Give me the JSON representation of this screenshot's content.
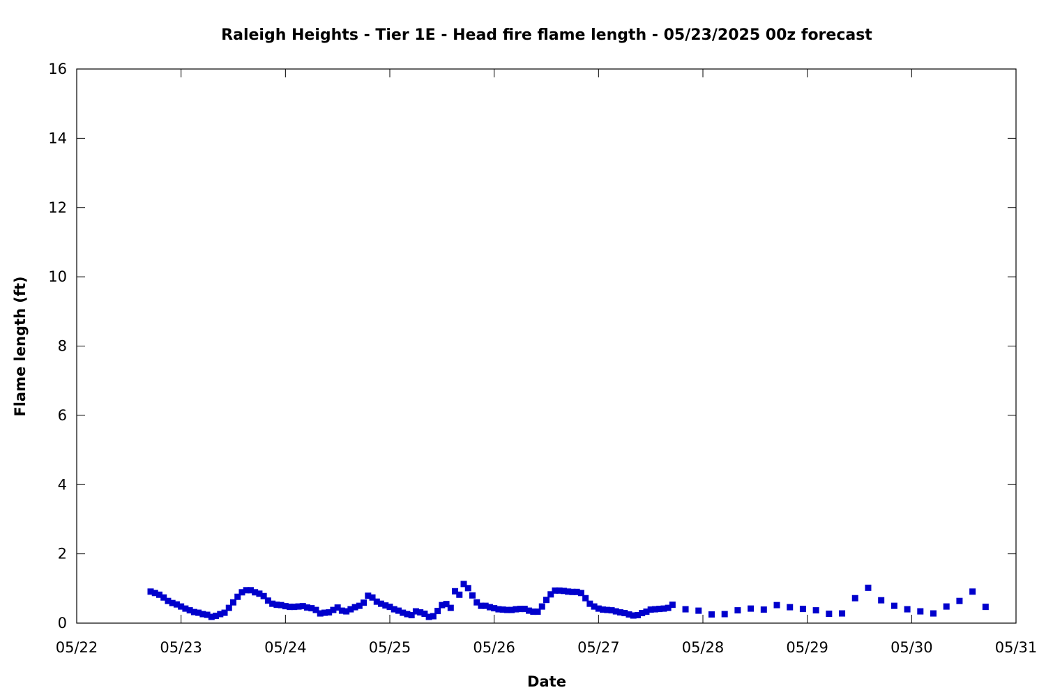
{
  "chart_data": {
    "type": "scatter",
    "title": "Raleigh Heights - Tier 1E - Head fire flame length - 05/23/2025 00z forecast",
    "xlabel": "Date",
    "ylabel": "Flame length (ft)",
    "x_type": "date",
    "xlim": [
      "2025-05-22T00:00",
      "2025-05-31T00:00"
    ],
    "ylim": [
      0,
      16
    ],
    "x_ticks": [
      {
        "value": "2025-05-22T00:00",
        "label": "05/22"
      },
      {
        "value": "2025-05-23T00:00",
        "label": "05/23"
      },
      {
        "value": "2025-05-24T00:00",
        "label": "05/24"
      },
      {
        "value": "2025-05-25T00:00",
        "label": "05/25"
      },
      {
        "value": "2025-05-26T00:00",
        "label": "05/26"
      },
      {
        "value": "2025-05-27T00:00",
        "label": "05/27"
      },
      {
        "value": "2025-05-28T00:00",
        "label": "05/28"
      },
      {
        "value": "2025-05-29T00:00",
        "label": "05/29"
      },
      {
        "value": "2025-05-30T00:00",
        "label": "05/30"
      },
      {
        "value": "2025-05-31T00:00",
        "label": "05/31"
      }
    ],
    "y_ticks": [
      0,
      2,
      4,
      6,
      8,
      10,
      12,
      14,
      16
    ],
    "grid": false,
    "legend": "none",
    "marker": "square",
    "series": [
      {
        "color": "#0000cc",
        "points": [
          [
            "2025-05-22T17:00",
            0.91
          ],
          [
            "2025-05-22T18:00",
            0.87
          ],
          [
            "2025-05-22T19:00",
            0.82
          ],
          [
            "2025-05-22T20:00",
            0.74
          ],
          [
            "2025-05-22T21:00",
            0.64
          ],
          [
            "2025-05-22T22:00",
            0.58
          ],
          [
            "2025-05-22T23:00",
            0.54
          ],
          [
            "2025-05-23T00:00",
            0.48
          ],
          [
            "2025-05-23T01:00",
            0.42
          ],
          [
            "2025-05-23T02:00",
            0.37
          ],
          [
            "2025-05-23T03:00",
            0.32
          ],
          [
            "2025-05-23T04:00",
            0.3
          ],
          [
            "2025-05-23T05:00",
            0.26
          ],
          [
            "2025-05-23T06:00",
            0.24
          ],
          [
            "2025-05-23T07:00",
            0.18
          ],
          [
            "2025-05-23T08:00",
            0.21
          ],
          [
            "2025-05-23T09:00",
            0.26
          ],
          [
            "2025-05-23T10:00",
            0.3
          ],
          [
            "2025-05-23T11:00",
            0.44
          ],
          [
            "2025-05-23T12:00",
            0.6
          ],
          [
            "2025-05-23T13:00",
            0.76
          ],
          [
            "2025-05-23T14:00",
            0.89
          ],
          [
            "2025-05-23T15:00",
            0.95
          ],
          [
            "2025-05-23T16:00",
            0.95
          ],
          [
            "2025-05-23T17:00",
            0.89
          ],
          [
            "2025-05-23T18:00",
            0.85
          ],
          [
            "2025-05-23T19:00",
            0.78
          ],
          [
            "2025-05-23T20:00",
            0.65
          ],
          [
            "2025-05-23T21:00",
            0.56
          ],
          [
            "2025-05-23T22:00",
            0.53
          ],
          [
            "2025-05-23T23:00",
            0.52
          ],
          [
            "2025-05-24T00:00",
            0.49
          ],
          [
            "2025-05-24T01:00",
            0.47
          ],
          [
            "2025-05-24T02:00",
            0.47
          ],
          [
            "2025-05-24T03:00",
            0.48
          ],
          [
            "2025-05-24T04:00",
            0.49
          ],
          [
            "2025-05-24T05:00",
            0.45
          ],
          [
            "2025-05-24T06:00",
            0.43
          ],
          [
            "2025-05-24T07:00",
            0.38
          ],
          [
            "2025-05-24T08:00",
            0.28
          ],
          [
            "2025-05-24T09:00",
            0.3
          ],
          [
            "2025-05-24T10:00",
            0.31
          ],
          [
            "2025-05-24T11:00",
            0.38
          ],
          [
            "2025-05-24T12:00",
            0.45
          ],
          [
            "2025-05-24T13:00",
            0.36
          ],
          [
            "2025-05-24T14:00",
            0.34
          ],
          [
            "2025-05-24T15:00",
            0.4
          ],
          [
            "2025-05-24T16:00",
            0.46
          ],
          [
            "2025-05-24T17:00",
            0.5
          ],
          [
            "2025-05-24T18:00",
            0.59
          ],
          [
            "2025-05-24T19:00",
            0.79
          ],
          [
            "2025-05-24T20:00",
            0.74
          ],
          [
            "2025-05-24T21:00",
            0.62
          ],
          [
            "2025-05-24T22:00",
            0.56
          ],
          [
            "2025-05-24T23:00",
            0.51
          ],
          [
            "2025-05-25T00:00",
            0.47
          ],
          [
            "2025-05-25T01:00",
            0.4
          ],
          [
            "2025-05-25T02:00",
            0.36
          ],
          [
            "2025-05-25T03:00",
            0.3
          ],
          [
            "2025-05-25T04:00",
            0.26
          ],
          [
            "2025-05-25T05:00",
            0.23
          ],
          [
            "2025-05-25T06:00",
            0.34
          ],
          [
            "2025-05-25T07:00",
            0.31
          ],
          [
            "2025-05-25T08:00",
            0.27
          ],
          [
            "2025-05-25T09:00",
            0.18
          ],
          [
            "2025-05-25T10:00",
            0.2
          ],
          [
            "2025-05-25T11:00",
            0.35
          ],
          [
            "2025-05-25T12:00",
            0.52
          ],
          [
            "2025-05-25T13:00",
            0.55
          ],
          [
            "2025-05-25T14:00",
            0.44
          ],
          [
            "2025-05-25T15:00",
            0.92
          ],
          [
            "2025-05-25T16:00",
            0.82
          ],
          [
            "2025-05-25T17:00",
            1.13
          ],
          [
            "2025-05-25T18:00",
            1.01
          ],
          [
            "2025-05-25T19:00",
            0.8
          ],
          [
            "2025-05-25T20:00",
            0.6
          ],
          [
            "2025-05-25T21:00",
            0.5
          ],
          [
            "2025-05-25T22:00",
            0.5
          ],
          [
            "2025-05-25T23:00",
            0.46
          ],
          [
            "2025-05-26T00:00",
            0.43
          ],
          [
            "2025-05-26T01:00",
            0.4
          ],
          [
            "2025-05-26T02:00",
            0.39
          ],
          [
            "2025-05-26T03:00",
            0.38
          ],
          [
            "2025-05-26T04:00",
            0.38
          ],
          [
            "2025-05-26T05:00",
            0.4
          ],
          [
            "2025-05-26T06:00",
            0.41
          ],
          [
            "2025-05-26T07:00",
            0.41
          ],
          [
            "2025-05-26T08:00",
            0.36
          ],
          [
            "2025-05-26T09:00",
            0.33
          ],
          [
            "2025-05-26T10:00",
            0.33
          ],
          [
            "2025-05-26T11:00",
            0.48
          ],
          [
            "2025-05-26T12:00",
            0.67
          ],
          [
            "2025-05-26T13:00",
            0.83
          ],
          [
            "2025-05-26T14:00",
            0.94
          ],
          [
            "2025-05-26T15:00",
            0.94
          ],
          [
            "2025-05-26T16:00",
            0.93
          ],
          [
            "2025-05-26T17:00",
            0.91
          ],
          [
            "2025-05-26T18:00",
            0.9
          ],
          [
            "2025-05-26T19:00",
            0.9
          ],
          [
            "2025-05-26T20:00",
            0.87
          ],
          [
            "2025-05-26T21:00",
            0.72
          ],
          [
            "2025-05-26T22:00",
            0.56
          ],
          [
            "2025-05-26T23:00",
            0.48
          ],
          [
            "2025-05-27T00:00",
            0.42
          ],
          [
            "2025-05-27T01:00",
            0.39
          ],
          [
            "2025-05-27T02:00",
            0.38
          ],
          [
            "2025-05-27T03:00",
            0.37
          ],
          [
            "2025-05-27T04:00",
            0.34
          ],
          [
            "2025-05-27T05:00",
            0.31
          ],
          [
            "2025-05-27T06:00",
            0.29
          ],
          [
            "2025-05-27T07:00",
            0.25
          ],
          [
            "2025-05-27T08:00",
            0.22
          ],
          [
            "2025-05-27T09:00",
            0.23
          ],
          [
            "2025-05-27T10:00",
            0.29
          ],
          [
            "2025-05-27T11:00",
            0.33
          ],
          [
            "2025-05-27T12:00",
            0.39
          ],
          [
            "2025-05-27T13:00",
            0.4
          ],
          [
            "2025-05-27T14:00",
            0.41
          ],
          [
            "2025-05-27T15:00",
            0.42
          ],
          [
            "2025-05-27T16:00",
            0.44
          ],
          [
            "2025-05-27T17:00",
            0.53
          ],
          [
            "2025-05-27T20:00",
            0.4
          ],
          [
            "2025-05-27T23:00",
            0.36
          ],
          [
            "2025-05-28T02:00",
            0.25
          ],
          [
            "2025-05-28T05:00",
            0.26
          ],
          [
            "2025-05-28T08:00",
            0.37
          ],
          [
            "2025-05-28T11:00",
            0.42
          ],
          [
            "2025-05-28T14:00",
            0.39
          ],
          [
            "2025-05-28T17:00",
            0.52
          ],
          [
            "2025-05-28T20:00",
            0.46
          ],
          [
            "2025-05-28T23:00",
            0.41
          ],
          [
            "2025-05-29T02:00",
            0.37
          ],
          [
            "2025-05-29T05:00",
            0.27
          ],
          [
            "2025-05-29T08:00",
            0.28
          ],
          [
            "2025-05-29T11:00",
            0.72
          ],
          [
            "2025-05-29T14:00",
            1.02
          ],
          [
            "2025-05-29T17:00",
            0.66
          ],
          [
            "2025-05-29T20:00",
            0.5
          ],
          [
            "2025-05-29T23:00",
            0.4
          ],
          [
            "2025-05-30T02:00",
            0.34
          ],
          [
            "2025-05-30T05:00",
            0.28
          ],
          [
            "2025-05-30T08:00",
            0.48
          ],
          [
            "2025-05-30T11:00",
            0.64
          ],
          [
            "2025-05-30T14:00",
            0.91
          ],
          [
            "2025-05-30T17:00",
            0.47
          ]
        ]
      }
    ]
  }
}
